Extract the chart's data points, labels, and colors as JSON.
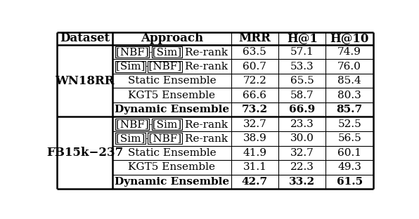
{
  "header": [
    "Dataset",
    "Approach",
    "MRR",
    "H@1",
    "H@10"
  ],
  "datasets": [
    {
      "name": "WN18RR",
      "rows": [
        {
          "approach": "[NBF]-[Sim] Re-rank",
          "mrr": "63.5",
          "h1": "57.1",
          "h10": "74.9",
          "bold": false,
          "special": true
        },
        {
          "approach": "[Sim]-[NBF] Re-rank",
          "mrr": "60.7",
          "h1": "53.3",
          "h10": "76.0",
          "bold": false,
          "special": true
        },
        {
          "approach": "Static Ensemble",
          "mrr": "72.2",
          "h1": "65.5",
          "h10": "85.4",
          "bold": false,
          "special": false
        },
        {
          "approach": "KGT5 Ensemble",
          "mrr": "66.6",
          "h1": "58.7",
          "h10": "80.3",
          "bold": false,
          "special": false
        },
        {
          "approach": "Dynamic Ensemble",
          "mrr": "73.2",
          "h1": "66.9",
          "h10": "85.7",
          "bold": true,
          "special": false
        }
      ]
    },
    {
      "name": "FB15k−237",
      "rows": [
        {
          "approach": "[NBF]-[Sim] Re-rank",
          "mrr": "32.7",
          "h1": "23.3",
          "h10": "52.5",
          "bold": false,
          "special": true
        },
        {
          "approach": "[Sim]-[NBF] Re-rank",
          "mrr": "38.9",
          "h1": "30.0",
          "h10": "56.5",
          "bold": false,
          "special": true
        },
        {
          "approach": "Static Ensemble",
          "mrr": "41.9",
          "h1": "32.7",
          "h10": "60.1",
          "bold": false,
          "special": false
        },
        {
          "approach": "KGT5 Ensemble",
          "mrr": "31.1",
          "h1": "22.3",
          "h10": "49.3",
          "bold": false,
          "special": false
        },
        {
          "approach": "Dynamic Ensemble",
          "mrr": "42.7",
          "h1": "33.2",
          "h10": "61.5",
          "bold": true,
          "special": false
        }
      ]
    }
  ],
  "bg_color": "#ffffff",
  "header_fs": 12,
  "body_fs": 11,
  "dataset_fs": 12
}
